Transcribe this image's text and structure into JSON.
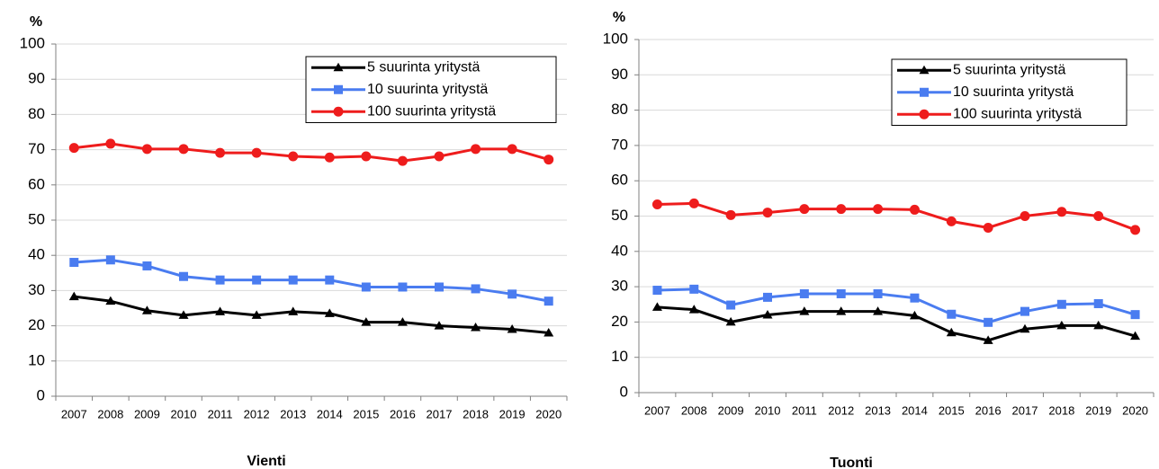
{
  "chart_data": [
    {
      "type": "line",
      "title": "Vienti",
      "ylabel": "%",
      "categories": [
        "2007",
        "2008",
        "2009",
        "2010",
        "2011",
        "2012",
        "2013",
        "2014",
        "2015",
        "2016",
        "2017",
        "2018",
        "2019",
        "2020"
      ],
      "series": [
        {
          "name": "5 suurinta yritystä",
          "color": "#000000",
          "marker": "triangle",
          "values": [
            28.3,
            27,
            24.3,
            23,
            24,
            23,
            24,
            23.5,
            21,
            21,
            20,
            19.5,
            19,
            18
          ]
        },
        {
          "name": "10 suurinta yritystä",
          "color": "#4a7cf0",
          "marker": "square",
          "values": [
            38,
            38.7,
            37,
            34,
            33,
            33,
            33,
            33,
            31,
            31,
            31,
            30.5,
            29,
            27
          ]
        },
        {
          "name": "100 suurinta yritystä",
          "color": "#ee1c1c",
          "marker": "circle",
          "values": [
            70.5,
            71.7,
            70.2,
            70.2,
            69.1,
            69.1,
            68.1,
            67.8,
            68.1,
            66.8,
            68.1,
            70.2,
            70.2,
            67.2
          ]
        }
      ],
      "ylim": [
        0,
        100
      ],
      "yticks": [
        0,
        10,
        20,
        30,
        40,
        50,
        60,
        70,
        80,
        90,
        100
      ],
      "grid": true,
      "legend": "top-right"
    },
    {
      "type": "line",
      "title": "Tuonti",
      "ylabel": "%",
      "categories": [
        "2007",
        "2008",
        "2009",
        "2010",
        "2011",
        "2012",
        "2013",
        "2014",
        "2015",
        "2016",
        "2017",
        "2018",
        "2019",
        "2020"
      ],
      "series": [
        {
          "name": "5 suurinta yritystä",
          "color": "#000000",
          "marker": "triangle",
          "values": [
            24.2,
            23.5,
            20,
            22,
            23,
            23,
            23,
            21.8,
            17,
            14.8,
            18,
            19,
            19,
            16
          ]
        },
        {
          "name": "10 suurinta yritystä",
          "color": "#4a7cf0",
          "marker": "square",
          "values": [
            29,
            29.3,
            24.8,
            27,
            28,
            28,
            28,
            26.8,
            22.2,
            19.9,
            23,
            25,
            25.2,
            22.1
          ]
        },
        {
          "name": "100 suurinta yritystä",
          "color": "#ee1c1c",
          "marker": "circle",
          "values": [
            53.3,
            53.6,
            50.3,
            51,
            52,
            52,
            52,
            51.8,
            48.5,
            46.7,
            50,
            51.2,
            50,
            46.1
          ]
        }
      ],
      "ylim": [
        0,
        100
      ],
      "yticks": [
        0,
        10,
        20,
        30,
        40,
        50,
        60,
        70,
        80,
        90,
        100
      ],
      "grid": true,
      "legend": "top-right"
    }
  ]
}
